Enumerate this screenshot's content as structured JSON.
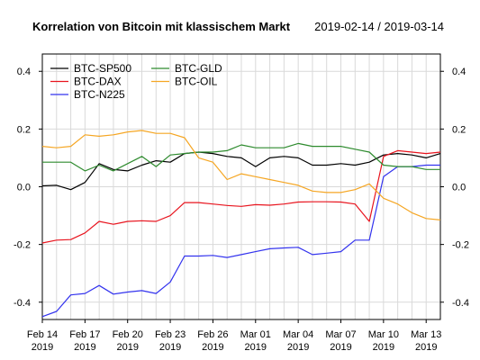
{
  "title": "Korrelation von Bitcoin mit klassischem Markt",
  "subtitle": "2019-02-14 / 2019-03-14",
  "chart_data": {
    "type": "line",
    "dates": [
      "2019-02-14",
      "2019-02-15",
      "2019-02-16",
      "2019-02-17",
      "2019-02-18",
      "2019-02-19",
      "2019-02-20",
      "2019-02-21",
      "2019-02-22",
      "2019-02-23",
      "2019-02-24",
      "2019-02-25",
      "2019-02-26",
      "2019-02-27",
      "2019-02-28",
      "2019-03-01",
      "2019-03-02",
      "2019-03-03",
      "2019-03-04",
      "2019-03-05",
      "2019-03-06",
      "2019-03-07",
      "2019-03-08",
      "2019-03-09",
      "2019-03-10",
      "2019-03-11",
      "2019-03-12",
      "2019-03-13",
      "2019-03-14"
    ],
    "x_ticks": [
      {
        "date": "2019-02-14",
        "line1": "Feb 14",
        "line2": "2019"
      },
      {
        "date": "2019-02-17",
        "line1": "Feb 17",
        "line2": "2019"
      },
      {
        "date": "2019-02-20",
        "line1": "Feb 20",
        "line2": "2019"
      },
      {
        "date": "2019-02-23",
        "line1": "Feb 23",
        "line2": "2019"
      },
      {
        "date": "2019-02-26",
        "line1": "Feb 26",
        "line2": "2019"
      },
      {
        "date": "2019-03-01",
        "line1": "Mar 01",
        "line2": "2019"
      },
      {
        "date": "2019-03-04",
        "line1": "Mar 04",
        "line2": "2019"
      },
      {
        "date": "2019-03-07",
        "line1": "Mar 07",
        "line2": "2019"
      },
      {
        "date": "2019-03-10",
        "line1": "Mar 10",
        "line2": "2019"
      },
      {
        "date": "2019-03-13",
        "line1": "Mar 13",
        "line2": "2019"
      }
    ],
    "ylim": [
      -0.46,
      0.46
    ],
    "y_ticks": [
      {
        "value": -0.4,
        "label": "-0.4"
      },
      {
        "value": -0.2,
        "label": "-0.2"
      },
      {
        "value": 0.0,
        "label": "0.0"
      },
      {
        "value": 0.2,
        "label": "0.2"
      },
      {
        "value": 0.4,
        "label": "0.4"
      }
    ],
    "grid": true,
    "legend_position": "top-left",
    "series": [
      {
        "name": "BTC-SP500",
        "color": "#000000",
        "values": [
          0.003,
          0.005,
          -0.01,
          0.015,
          0.08,
          0.06,
          0.055,
          0.075,
          0.09,
          0.085,
          0.115,
          0.12,
          0.115,
          0.105,
          0.1,
          0.07,
          0.1,
          0.105,
          0.1,
          0.075,
          0.075,
          0.08,
          0.075,
          0.085,
          0.11,
          0.115,
          0.11,
          0.1,
          0.115
        ]
      },
      {
        "name": "BTC-DAX",
        "color": "#e8141e",
        "values": [
          -0.195,
          -0.185,
          -0.183,
          -0.16,
          -0.12,
          -0.13,
          -0.12,
          -0.118,
          -0.12,
          -0.1,
          -0.055,
          -0.055,
          -0.06,
          -0.065,
          -0.068,
          -0.062,
          -0.064,
          -0.06,
          -0.053,
          -0.052,
          -0.052,
          -0.053,
          -0.06,
          -0.12,
          0.105,
          0.125,
          0.12,
          0.115,
          0.12
        ]
      },
      {
        "name": "BTC-N225",
        "color": "#3333ee",
        "values": [
          -0.45,
          -0.432,
          -0.375,
          -0.37,
          -0.342,
          -0.372,
          -0.365,
          -0.36,
          -0.37,
          -0.33,
          -0.24,
          -0.24,
          -0.238,
          -0.245,
          -0.235,
          -0.225,
          -0.215,
          -0.212,
          -0.21,
          -0.235,
          -0.23,
          -0.225,
          -0.185,
          -0.185,
          0.035,
          0.07,
          0.07,
          0.075,
          0.075
        ]
      },
      {
        "name": "BTC-GLD",
        "color": "#2e8b2e",
        "values": [
          0.085,
          0.085,
          0.085,
          0.055,
          0.075,
          0.055,
          0.08,
          0.105,
          0.07,
          0.11,
          0.115,
          0.12,
          0.12,
          0.125,
          0.145,
          0.135,
          0.135,
          0.135,
          0.15,
          0.14,
          0.14,
          0.14,
          0.13,
          0.12,
          0.075,
          0.07,
          0.07,
          0.06,
          0.06
        ]
      },
      {
        "name": "BTC-OIL",
        "color": "#f5a623",
        "values": [
          0.14,
          0.135,
          0.14,
          0.18,
          0.175,
          0.18,
          0.19,
          0.195,
          0.185,
          0.185,
          0.17,
          0.1,
          0.085,
          0.025,
          0.045,
          0.035,
          0.025,
          0.015,
          0.005,
          -0.015,
          -0.02,
          -0.02,
          -0.01,
          0.01,
          -0.04,
          -0.06,
          -0.09,
          -0.11,
          -0.115
        ]
      }
    ]
  }
}
